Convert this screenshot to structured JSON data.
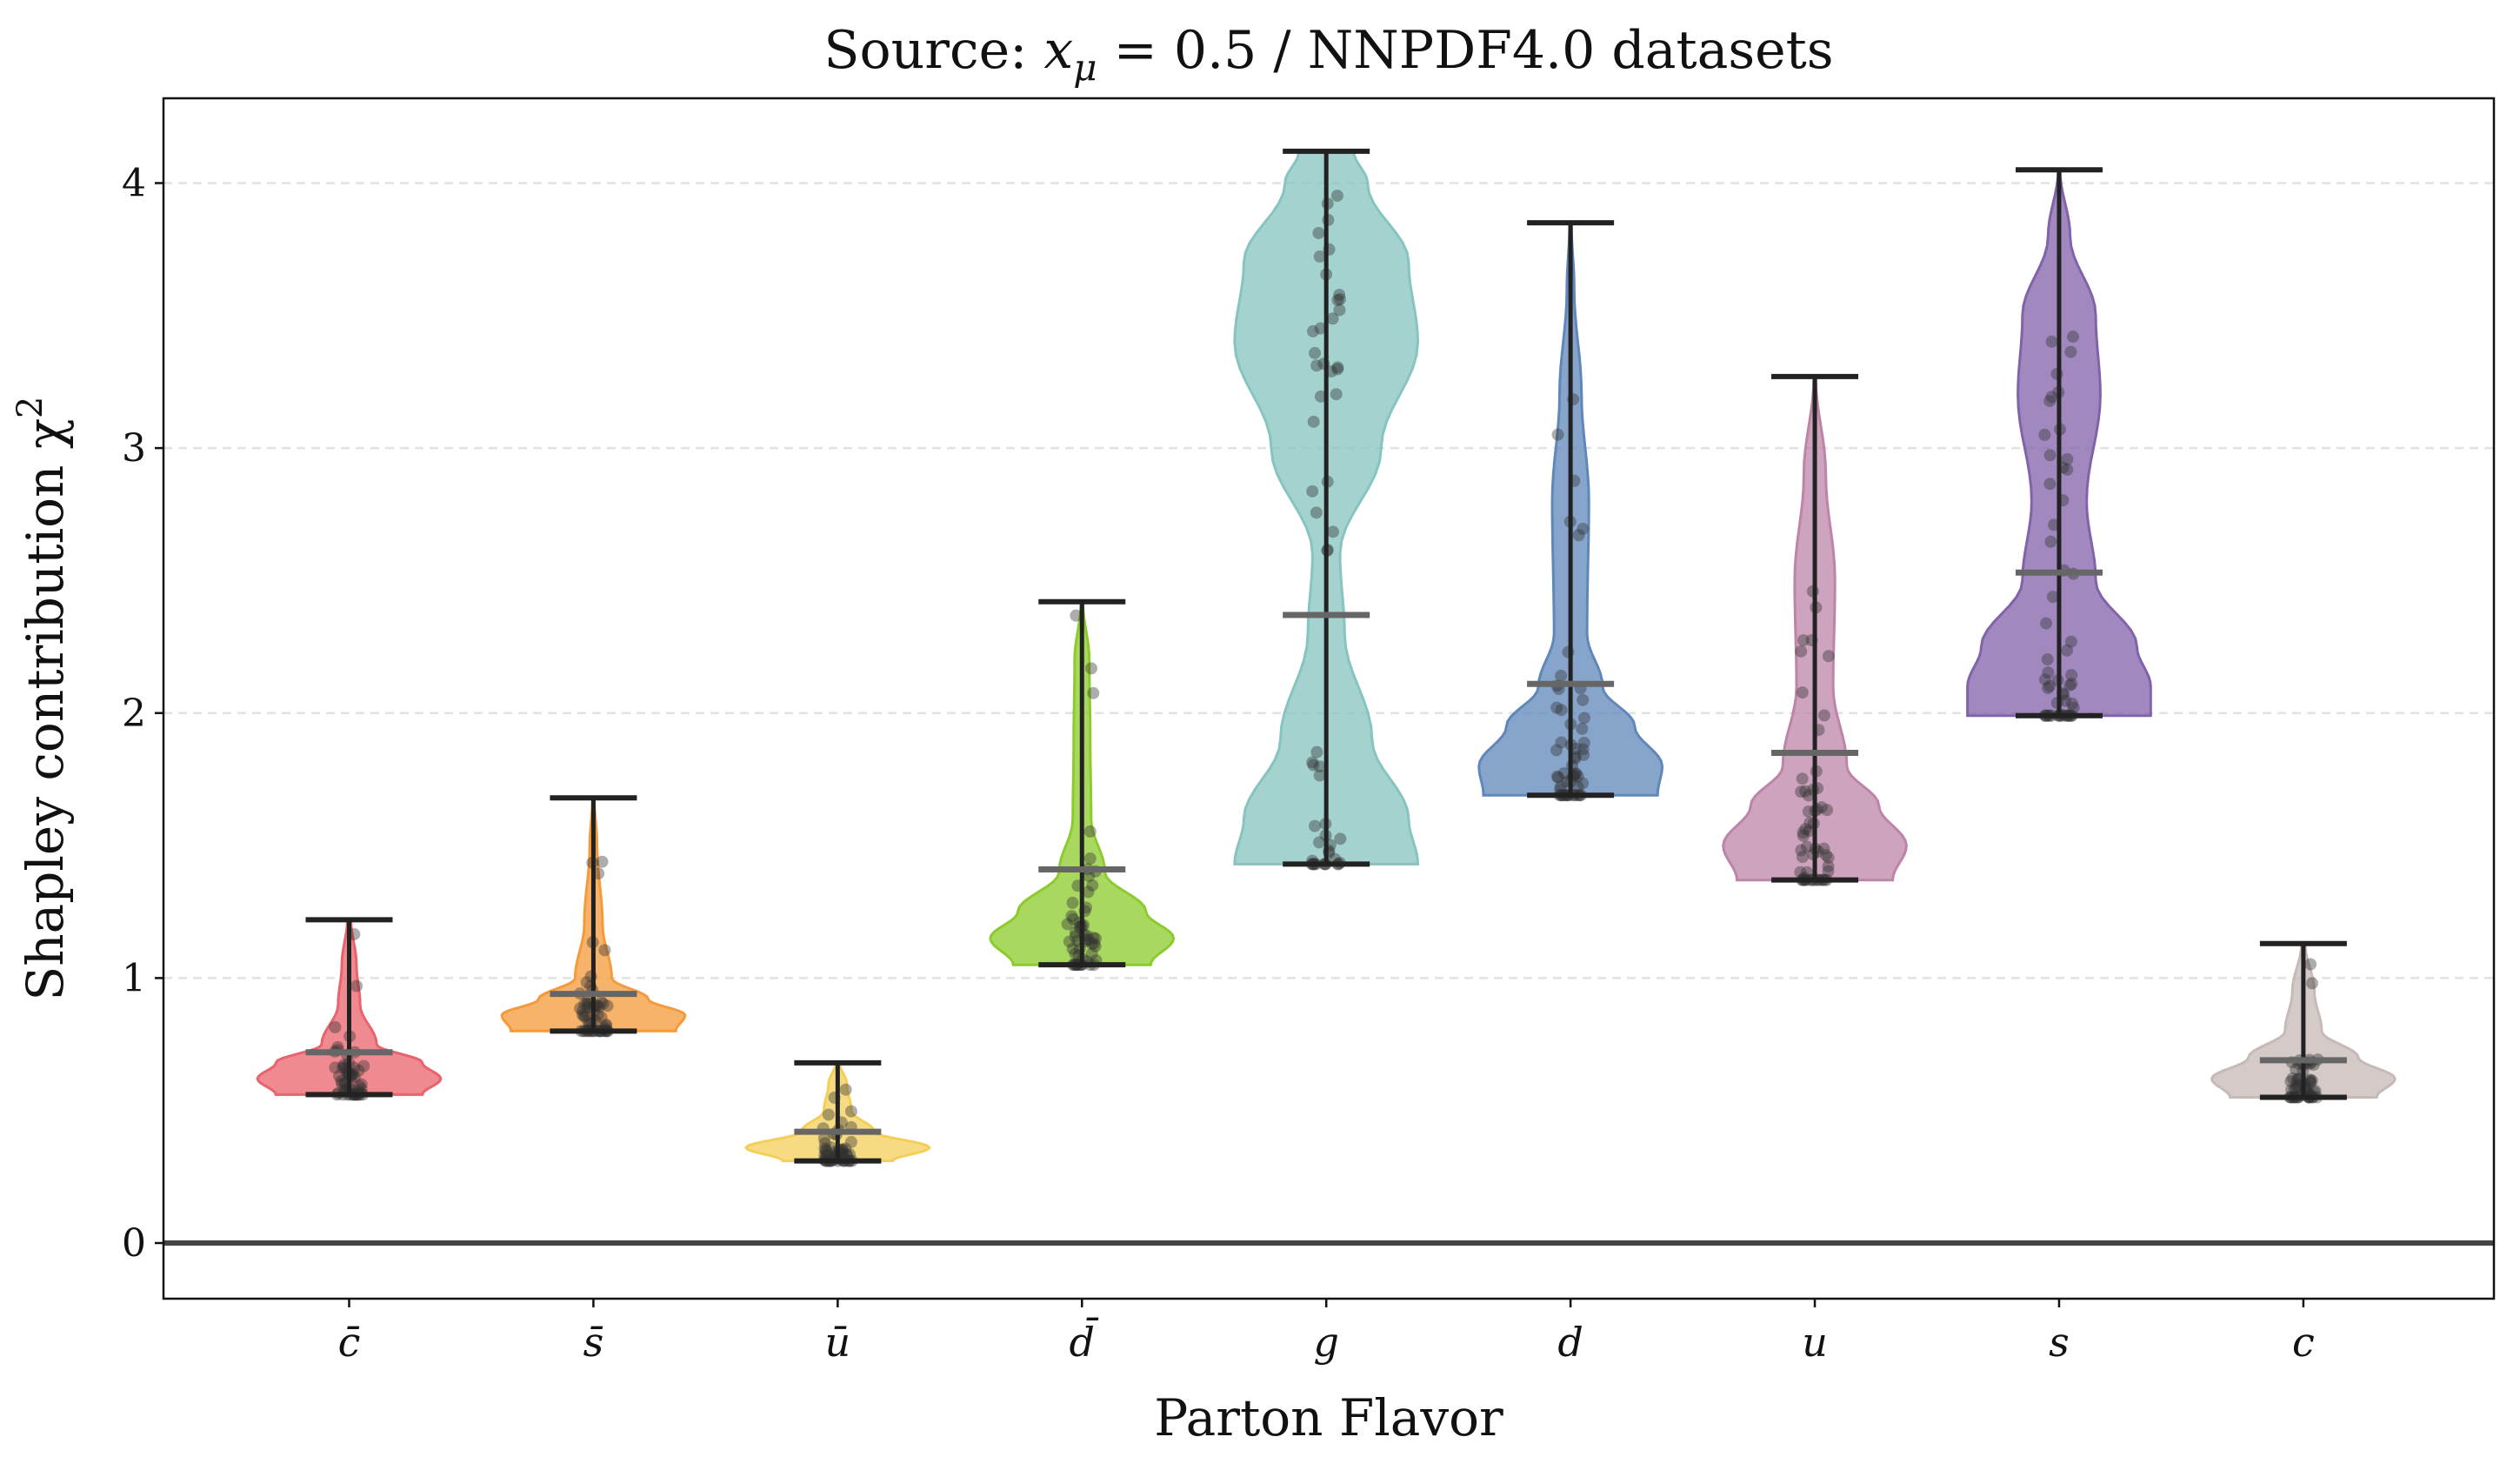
{
  "chart_data": {
    "type": "violin",
    "title": "Source: ",
    "title_math_var": "x",
    "title_math_sub": "μ",
    "title_rest": " = 0.5 / NNPDF4.0 datasets",
    "xlabel": "Parton Flavor",
    "ylabel": "Shapley contribution χ",
    "ylabel_sup": "2",
    "ylim": [
      -0.21,
      4.32
    ],
    "xlim": [
      -0.76,
      8.78
    ],
    "yticks": [
      "0",
      "1",
      "2",
      "3",
      "4"
    ],
    "grid": "y-dashed",
    "reference_line_y": 0,
    "categories": [
      "c̄",
      "s̄",
      "ū",
      "d̄",
      "g",
      "d",
      "u",
      "s",
      "c"
    ],
    "series": [
      {
        "name": "cbar",
        "color": "#e8636b",
        "min": 0.56,
        "max": 1.22,
        "mean": 0.72,
        "density": [
          [
            0.56,
            0.8
          ],
          [
            0.62,
            1
          ],
          [
            0.68,
            0.8
          ],
          [
            0.75,
            0.3
          ],
          [
            0.9,
            0.12
          ],
          [
            1.05,
            0.08
          ],
          [
            1.22,
            0.02
          ]
        ]
      },
      {
        "name": "sbar",
        "color": "#f59a3a",
        "min": 0.8,
        "max": 1.68,
        "mean": 0.94,
        "density": [
          [
            0.8,
            0.9
          ],
          [
            0.86,
            1
          ],
          [
            0.92,
            0.6
          ],
          [
            1.0,
            0.2
          ],
          [
            1.2,
            0.1
          ],
          [
            1.5,
            0.04
          ],
          [
            1.68,
            0.01
          ]
        ]
      },
      {
        "name": "ubar",
        "color": "#f3cf5a",
        "min": 0.31,
        "max": 0.68,
        "mean": 0.42,
        "density": [
          [
            0.31,
            0.6
          ],
          [
            0.36,
            1
          ],
          [
            0.42,
            0.4
          ],
          [
            0.5,
            0.15
          ],
          [
            0.6,
            0.1
          ],
          [
            0.68,
            0.02
          ]
        ]
      },
      {
        "name": "dbar",
        "color": "#8ccb2c",
        "min": 1.05,
        "max": 2.42,
        "mean": 1.41,
        "density": [
          [
            1.05,
            0.75
          ],
          [
            1.15,
            1
          ],
          [
            1.25,
            0.7
          ],
          [
            1.4,
            0.25
          ],
          [
            1.6,
            0.1
          ],
          [
            1.9,
            0.09
          ],
          [
            2.2,
            0.08
          ],
          [
            2.42,
            0.01
          ]
        ]
      },
      {
        "name": "g",
        "color": "#86c4bf",
        "min": 1.43,
        "max": 4.12,
        "mean": 2.37,
        "density": [
          [
            1.43,
            1
          ],
          [
            1.6,
            0.9
          ],
          [
            1.9,
            0.5
          ],
          [
            2.3,
            0.2
          ],
          [
            2.6,
            0.15
          ],
          [
            3.0,
            0.6
          ],
          [
            3.4,
            1
          ],
          [
            3.7,
            0.9
          ],
          [
            4.0,
            0.45
          ],
          [
            4.12,
            0.3
          ]
        ]
      },
      {
        "name": "d",
        "color": "#5f87b9",
        "min": 1.69,
        "max": 3.85,
        "mean": 2.11,
        "density": [
          [
            1.69,
            0.95
          ],
          [
            1.8,
            1
          ],
          [
            1.95,
            0.7
          ],
          [
            2.1,
            0.35
          ],
          [
            2.3,
            0.18
          ],
          [
            2.8,
            0.2
          ],
          [
            3.2,
            0.12
          ],
          [
            3.6,
            0.04
          ],
          [
            3.85,
            0.01
          ]
        ]
      },
      {
        "name": "u",
        "color": "#bd84a8",
        "min": 1.37,
        "max": 3.27,
        "mean": 1.85,
        "density": [
          [
            1.37,
            0.85
          ],
          [
            1.5,
            1
          ],
          [
            1.65,
            0.7
          ],
          [
            1.8,
            0.35
          ],
          [
            2.1,
            0.2
          ],
          [
            2.5,
            0.22
          ],
          [
            2.9,
            0.12
          ],
          [
            3.27,
            0.01
          ]
        ]
      },
      {
        "name": "s",
        "color": "#8262ab",
        "min": 1.99,
        "max": 4.05,
        "mean": 2.53,
        "density": [
          [
            1.99,
            1
          ],
          [
            2.1,
            1
          ],
          [
            2.25,
            0.85
          ],
          [
            2.5,
            0.4
          ],
          [
            2.8,
            0.3
          ],
          [
            3.2,
            0.45
          ],
          [
            3.5,
            0.4
          ],
          [
            3.8,
            0.12
          ],
          [
            4.05,
            0.01
          ]
        ]
      },
      {
        "name": "c",
        "color": "#c6bab7",
        "min": 0.55,
        "max": 1.13,
        "mean": 0.69,
        "density": [
          [
            0.55,
            0.8
          ],
          [
            0.62,
            1
          ],
          [
            0.7,
            0.6
          ],
          [
            0.8,
            0.2
          ],
          [
            0.95,
            0.12
          ],
          [
            1.13,
            0.02
          ]
        ]
      }
    ]
  }
}
